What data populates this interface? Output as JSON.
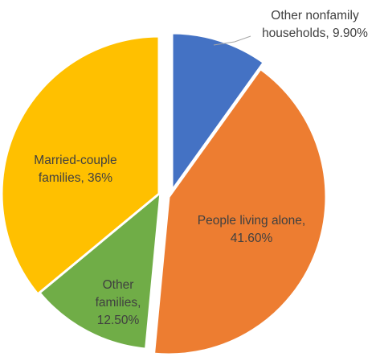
{
  "chart_data": {
    "type": "pie",
    "title": "",
    "slices": [
      {
        "category": "Other nonfamily households",
        "value": 9.9,
        "label": [
          "Other nonfamily",
          "households, 9.90%"
        ],
        "color": "#4472C4",
        "exploded": true
      },
      {
        "category": "People living alone",
        "value": 41.6,
        "label": [
          "People living alone,",
          "41.60%"
        ],
        "color": "#ED7D31",
        "exploded": false
      },
      {
        "category": "Other families",
        "value": 12.5,
        "label": [
          "Other",
          "families,",
          "12.50%"
        ],
        "color": "#70AD47",
        "exploded": true
      },
      {
        "category": "Married-couple families",
        "value": 36,
        "label": [
          "Married-couple",
          "families, 36%"
        ],
        "color": "#FFC000",
        "exploded": true
      }
    ],
    "legend": false,
    "start_angle_deg": 0,
    "direction": "clockwise"
  }
}
